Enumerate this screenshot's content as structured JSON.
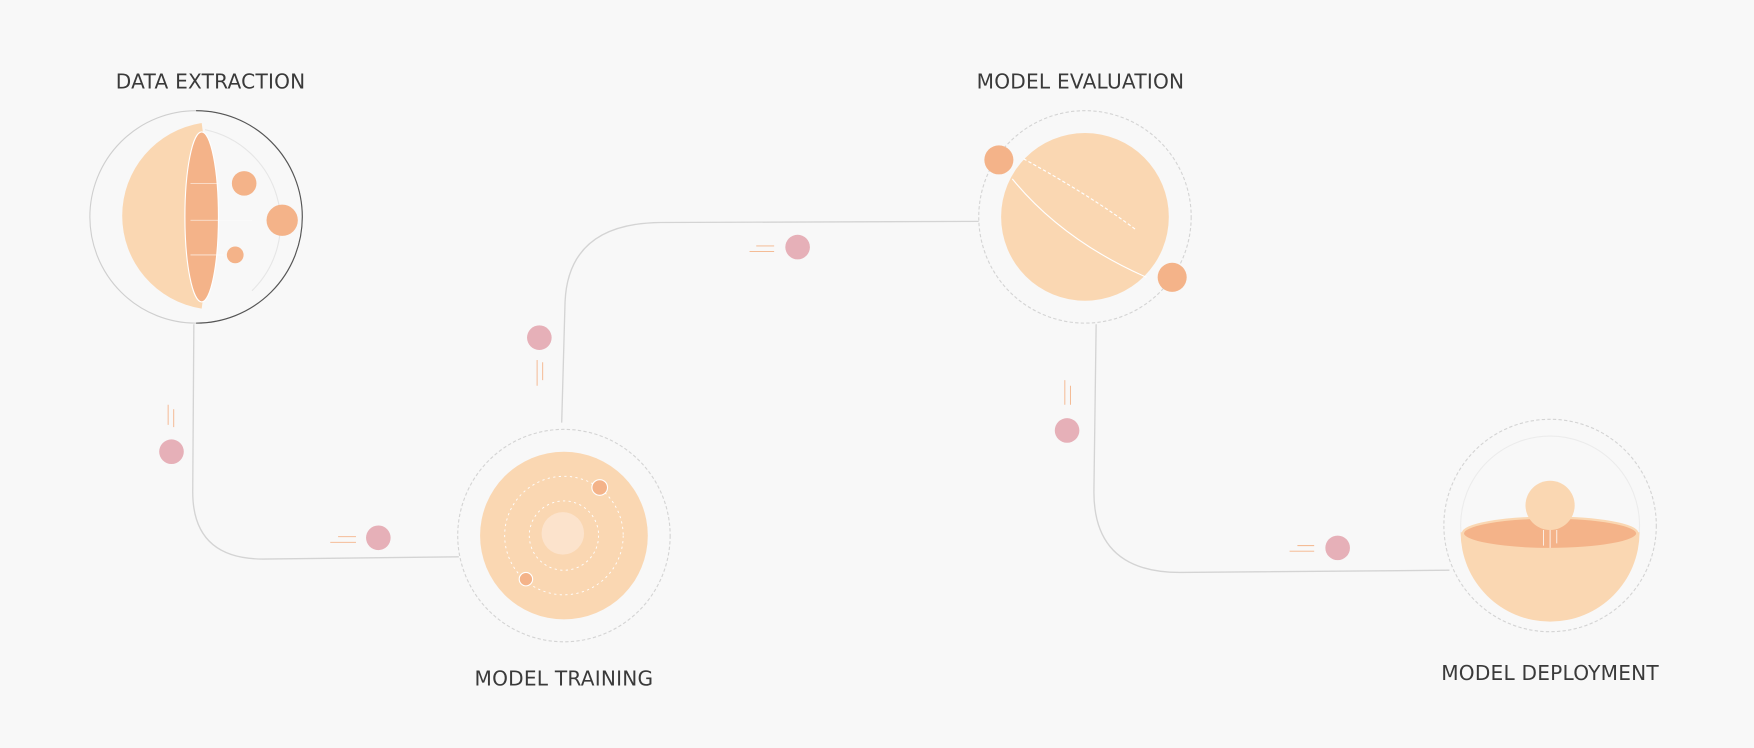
{
  "stages": [
    {
      "label": "DATA EXTRACTION"
    },
    {
      "label": "MODEL TRAINING"
    },
    {
      "label": "MODEL EVALUATION"
    },
    {
      "label": "MODEL DEPLOYMENT"
    }
  ],
  "colors": {
    "background": "#f8f8f8",
    "peach": "#fad7b2",
    "orange": "#f4b389",
    "pink": "#e6b0b8",
    "connector": "#d4d4d4",
    "text": "#3a3a3a"
  }
}
